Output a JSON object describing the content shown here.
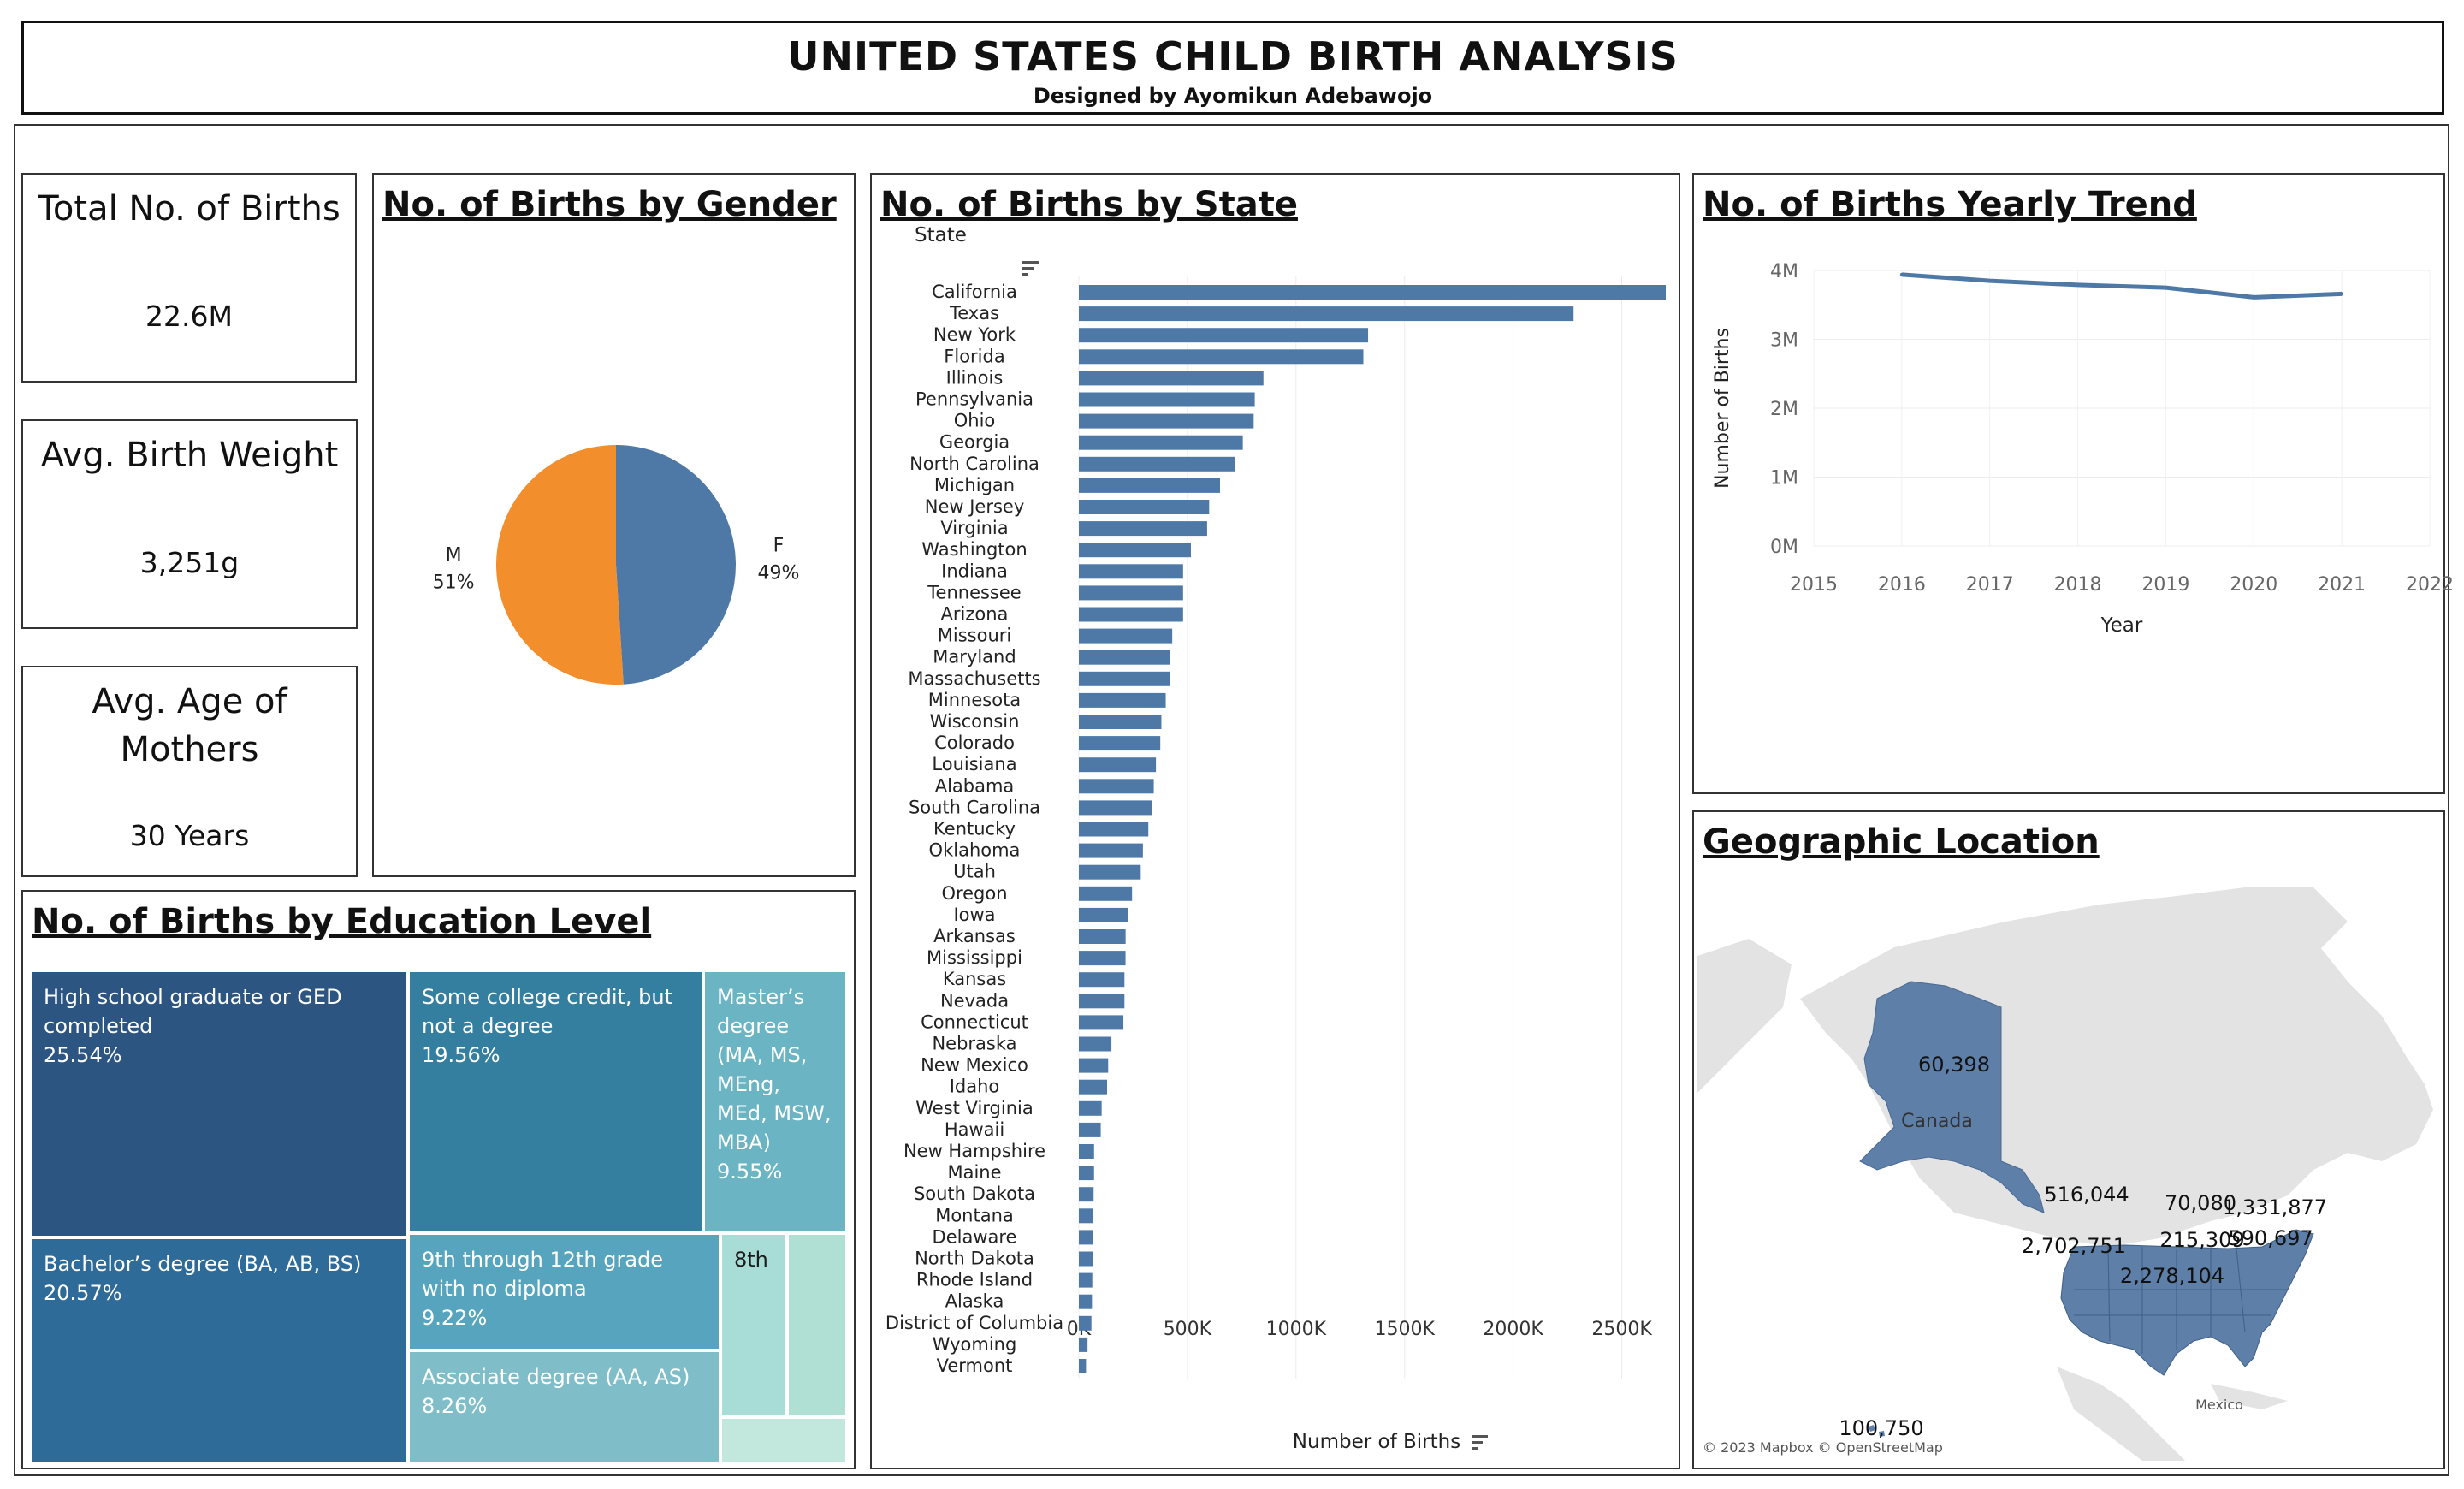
{
  "header": {
    "title": "UNITED STATES CHILD BIRTH ANALYSIS",
    "subtitle": "Designed by Ayomikun Adebawojo"
  },
  "kpis": {
    "total_births": {
      "title": "Total No. of Births",
      "value": "22.6M"
    },
    "avg_weight": {
      "title": "Avg. Birth Weight",
      "value": "3,251g"
    },
    "avg_age": {
      "title": "Avg. Age of Mothers",
      "value": "30 Years"
    }
  },
  "panels": {
    "gender": "No. of Births by Gender",
    "state": "No. of Births by State",
    "trend": "No. of Births Yearly Trend",
    "geo": "Geographic Location",
    "education": "No. of Births by Education Level"
  },
  "colors": {
    "blue": "#4e79a7",
    "orange": "#f28e2b"
  },
  "chart_data": [
    {
      "type": "pie",
      "title": "No. of Births by Gender",
      "slices": [
        {
          "label": "F",
          "pct_label": "49%",
          "value": 49,
          "color": "#4e79a7"
        },
        {
          "label": "M",
          "pct_label": "51%",
          "value": 51,
          "color": "#f28e2b"
        }
      ]
    },
    {
      "type": "bar",
      "title": "No. of Births by State",
      "orientation": "horizontal",
      "category_header": "State",
      "xlabel": "Number of Births",
      "xlim": [
        0,
        2750000
      ],
      "x_ticks": [
        0,
        500000,
        1000000,
        1500000,
        2000000,
        2500000
      ],
      "x_tick_labels": [
        "0K",
        "500K",
        "1000K",
        "1500K",
        "2000K",
        "2500K"
      ],
      "grid": true,
      "categories": [
        "California",
        "Texas",
        "New York",
        "Florida",
        "Illinois",
        "Pennsylvania",
        "Ohio",
        "Georgia",
        "North Carolina",
        "Michigan",
        "New Jersey",
        "Virginia",
        "Washington",
        "Indiana",
        "Tennessee",
        "Arizona",
        "Missouri",
        "Maryland",
        "Massachusetts",
        "Minnesota",
        "Wisconsin",
        "Colorado",
        "Louisiana",
        "Alabama",
        "South Carolina",
        "Kentucky",
        "Oklahoma",
        "Utah",
        "Oregon",
        "Iowa",
        "Arkansas",
        "Mississippi",
        "Kansas",
        "Nevada",
        "Connecticut",
        "Nebraska",
        "New Mexico",
        "Idaho",
        "West Virginia",
        "Hawaii",
        "New Hampshire",
        "Maine",
        "South Dakota",
        "Montana",
        "Delaware",
        "North Dakota",
        "Rhode Island",
        "Alaska",
        "District of Columbia",
        "Wyoming",
        "Vermont"
      ],
      "values": [
        2702751,
        2278104,
        1331877,
        1310000,
        850000,
        810000,
        805000,
        755000,
        720000,
        650000,
        600000,
        590697,
        516044,
        480000,
        480000,
        480000,
        430000,
        420000,
        420000,
        400000,
        380000,
        375000,
        355000,
        345000,
        335000,
        320000,
        295000,
        285000,
        245000,
        225000,
        215309,
        215000,
        210000,
        210000,
        205000,
        150000,
        135000,
        130000,
        105000,
        100750,
        70080,
        70000,
        68000,
        67000,
        65000,
        63000,
        62000,
        60398,
        58000,
        40000,
        33000
      ]
    },
    {
      "type": "line",
      "title": "No. of Births Yearly Trend",
      "xlabel": "Year",
      "ylabel": "Number of Births",
      "x_ticks": [
        2015,
        2016,
        2017,
        2018,
        2019,
        2020,
        2021,
        2022
      ],
      "y_ticks": [
        0,
        1000000,
        2000000,
        3000000,
        4000000
      ],
      "y_tick_labels": [
        "0M",
        "1M",
        "2M",
        "3M",
        "4M"
      ],
      "xlim": [
        2015,
        2022
      ],
      "ylim": [
        0,
        4000000
      ],
      "grid": true,
      "x": [
        2016,
        2017,
        2018,
        2019,
        2020,
        2021
      ],
      "y": [
        3940000,
        3850000,
        3790000,
        3750000,
        3610000,
        3660000
      ]
    },
    {
      "type": "treemap",
      "title": "No. of Births by Education Level",
      "items": [
        {
          "label": "High school graduate or GED completed",
          "pct": "25.54%",
          "value": 25.54,
          "color": "#2d5581"
        },
        {
          "label": "Bachelor’s degree (BA, AB, BS)",
          "pct": "20.57%",
          "value": 20.57,
          "color": "#2f6b98"
        },
        {
          "label": "Some college credit, but not a degree",
          "pct": "19.56%",
          "value": 19.56,
          "color": "#347e9f"
        },
        {
          "label": "Master’s degree (MA, MS, MEng, MEd, MSW, MBA)",
          "pct": "9.55%",
          "value": 9.55,
          "color": "#6ab4c3"
        },
        {
          "label": "9th through 12th grade with no diploma",
          "pct": "9.22%",
          "value": 9.22,
          "color": "#56a4bd"
        },
        {
          "label": "Associate degree (AA, AS)",
          "pct": "8.26%",
          "value": 8.26,
          "color": "#7fbec8"
        },
        {
          "label": "8th",
          "pct": "",
          "value": 3.2,
          "color": "#a8dcd6"
        },
        {
          "label": "",
          "pct": "",
          "value": 2.6,
          "color": "#b0e0d4"
        },
        {
          "label": "",
          "pct": "",
          "value": 1.5,
          "color": "#c2e8de"
        }
      ]
    }
  ],
  "map": {
    "labels": [
      {
        "state": "Alaska",
        "text": "60,398"
      },
      {
        "state": "Washington",
        "text": "516,044"
      },
      {
        "state": "New Hampshire",
        "text": "70,080"
      },
      {
        "state": "New York",
        "text": "1,331,877"
      },
      {
        "state": "California",
        "text": "2,702,751"
      },
      {
        "state": "Arkansas",
        "text": "215,309"
      },
      {
        "state": "Virginia",
        "text": "590,697"
      },
      {
        "state": "Texas",
        "text": "2,278,104"
      },
      {
        "state": "Hawaii",
        "text": "100,750"
      }
    ],
    "place_labels": {
      "canada": "Canada",
      "mexico": "Mexico"
    },
    "attribution": "© 2023 Mapbox © OpenStreetMap"
  }
}
